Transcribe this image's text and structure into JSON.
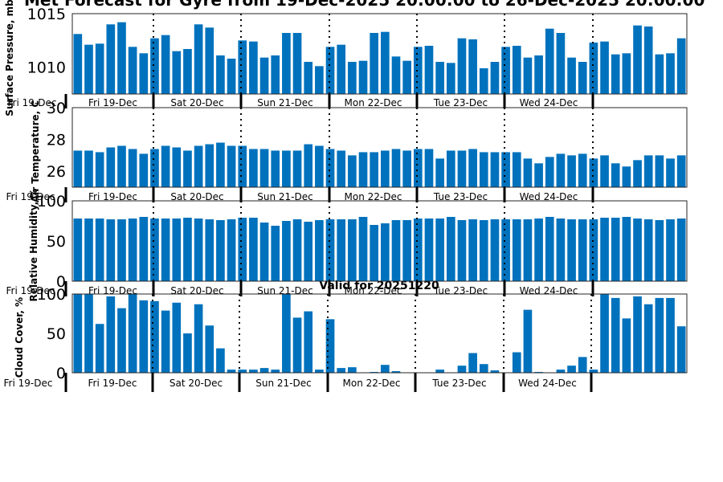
{
  "figure": {
    "title": "Met Forecast for Gyre from 19-Dec-2025 20:00:00 to 26-Dec-2025 20:00:00",
    "subtitle": "Valid for 20251220"
  },
  "chart_data": [
    {
      "type": "bar",
      "ylabel": "Surface Pressure, mb",
      "ylim": [
        1007.5,
        1015
      ],
      "yticks": [
        1010,
        1015
      ],
      "first_tick_label": "Fri 19-Dec",
      "day_labels": [
        "Fri 19-Dec",
        "Sat 20-Dec",
        "Sun 21-Dec",
        "Mon 22-Dec",
        "Tue 23-Dec",
        "Wed 24-Dec"
      ],
      "values": [
        1013.1,
        1012.1,
        1012.2,
        1014.0,
        1014.2,
        1011.9,
        1011.3,
        1012.7,
        1013.0,
        1011.5,
        1011.7,
        1014.0,
        1013.7,
        1011.1,
        1010.8,
        1012.5,
        1012.4,
        1010.9,
        1011.1,
        1013.2,
        1013.2,
        1010.5,
        1010.1,
        1011.9,
        1012.1,
        1010.5,
        1010.6,
        1013.2,
        1013.3,
        1011.0,
        1010.6,
        1011.9,
        1012.0,
        1010.5,
        1010.4,
        1012.7,
        1012.6,
        1009.9,
        1010.5,
        1011.9,
        1012.0,
        1010.9,
        1011.1,
        1013.6,
        1013.2,
        1010.9,
        1010.5,
        1012.3,
        1012.4,
        1011.2,
        1011.3,
        1013.9,
        1013.8,
        1011.2,
        1011.3,
        1012.7
      ]
    },
    {
      "type": "bar",
      "ylabel": "Air Temperature, C",
      "ylim": [
        25,
        30
      ],
      "yticks": [
        26,
        28,
        30
      ],
      "first_tick_label": "Fri 19-Dec",
      "day_labels": [
        "Fri 19-Dec",
        "Sat 20-Dec",
        "Sun 21-Dec",
        "Mon 22-Dec",
        "Tue 23-Dec",
        "Wed 24-Dec"
      ],
      "values": [
        27.3,
        27.3,
        27.2,
        27.5,
        27.6,
        27.4,
        27.1,
        27.4,
        27.6,
        27.5,
        27.3,
        27.6,
        27.7,
        27.8,
        27.6,
        27.6,
        27.4,
        27.4,
        27.3,
        27.3,
        27.3,
        27.7,
        27.6,
        27.4,
        27.3,
        27.0,
        27.2,
        27.2,
        27.3,
        27.4,
        27.3,
        27.4,
        27.4,
        26.8,
        27.3,
        27.3,
        27.4,
        27.2,
        27.2,
        27.2,
        27.2,
        26.8,
        26.5,
        26.9,
        27.1,
        27.0,
        27.1,
        26.8,
        27.0,
        26.5,
        26.3,
        26.7,
        27.0,
        27.0,
        26.8,
        27.0
      ]
    },
    {
      "type": "bar",
      "ylabel": "Relative Humidity, %",
      "ylim": [
        0,
        100
      ],
      "yticks": [
        0,
        50,
        100
      ],
      "first_tick_label": "Fri 19-Dec",
      "day_labels": [
        "Fri 19-Dec",
        "Sat 20-Dec",
        "Sun 21-Dec",
        "Mon 22-Dec",
        "Tue 23-Dec",
        "Wed 24-Dec"
      ],
      "values": [
        78,
        78,
        78,
        77,
        77,
        78,
        80,
        78,
        78,
        78,
        79,
        78,
        77,
        76,
        77,
        79,
        79,
        73,
        69,
        75,
        77,
        74,
        76,
        77,
        77,
        77,
        80,
        70,
        72,
        76,
        76,
        78,
        78,
        78,
        80,
        76,
        77,
        76,
        77,
        77,
        77,
        77,
        78,
        80,
        78,
        77,
        77,
        77,
        79,
        79,
        80,
        78,
        77,
        76,
        77,
        78
      ]
    },
    {
      "type": "bar",
      "ylabel": "Cloud Cover, %",
      "ylim": [
        0,
        100
      ],
      "yticks": [
        0,
        50,
        100
      ],
      "first_tick_label": "Fri 19-Dec",
      "day_labels": [
        "Fri 19-Dec",
        "Sat 20-Dec",
        "Sun 21-Dec",
        "Mon 22-Dec",
        "Tue 23-Dec",
        "Wed 24-Dec"
      ],
      "values": [
        100,
        100,
        62,
        97,
        82,
        100,
        92,
        91,
        79,
        89,
        50,
        87,
        60,
        31,
        4,
        4,
        4,
        6,
        4,
        100,
        70,
        78,
        4,
        68,
        6,
        7,
        0,
        1,
        10,
        2,
        0,
        0,
        0,
        4,
        0,
        9,
        25,
        11,
        3,
        0,
        26,
        80,
        1,
        0,
        4,
        9,
        20,
        4,
        100,
        95,
        69,
        97,
        87,
        95,
        95,
        59
      ]
    }
  ]
}
